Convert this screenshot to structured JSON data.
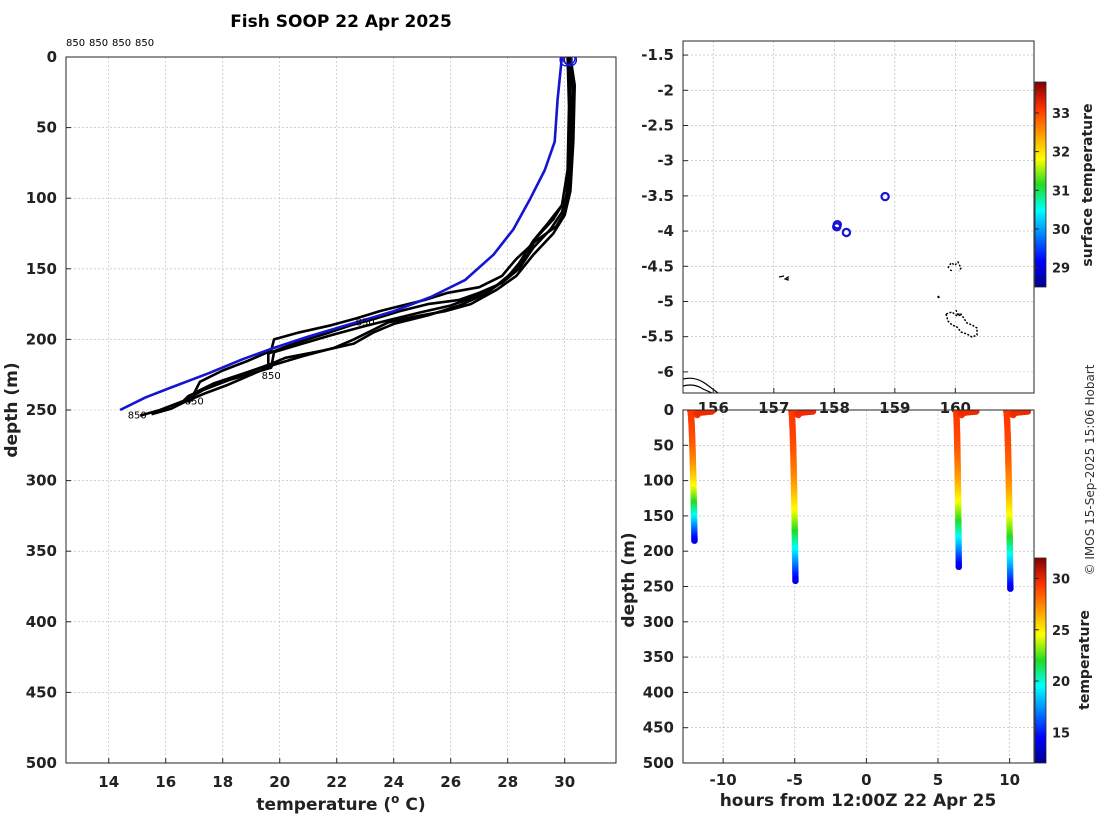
{
  "chart_data": [
    {
      "type": "line",
      "title": "Fish SOOP 22 Apr 2025",
      "xlabel": "temperature (",
      "xlabel_super": "o",
      "xlabel_tail": " C)",
      "ylabel": "depth (m)",
      "xlim": [
        12.5,
        31.8
      ],
      "ylim": [
        500,
        0
      ],
      "xticks": [
        "14",
        "16",
        "18",
        "20",
        "22",
        "24",
        "26",
        "28",
        "30"
      ],
      "yticks": [
        "0",
        "50",
        "100",
        "150",
        "200",
        "250",
        "300",
        "350",
        "400",
        "450",
        "500"
      ],
      "header_labels": [
        "850",
        "850",
        "850",
        "850"
      ],
      "annotations": [
        {
          "text": "850",
          "x": 23.0,
          "y": 188
        },
        {
          "text": "850",
          "x": 19.7,
          "y": 226
        },
        {
          "text": "850",
          "x": 17.0,
          "y": 244
        },
        {
          "text": "850",
          "x": 15.0,
          "y": 254
        }
      ],
      "series": [
        {
          "name": "profile 1",
          "color": "#000000",
          "points": [
            [
              30.1,
              0
            ],
            [
              30.2,
              20
            ],
            [
              30.25,
              60
            ],
            [
              30.15,
              90
            ],
            [
              30.0,
              110
            ],
            [
              29.7,
              120
            ],
            [
              29.0,
              130
            ],
            [
              28.3,
              143
            ],
            [
              27.8,
              155
            ],
            [
              27.0,
              163
            ],
            [
              25.9,
              167
            ],
            [
              25.1,
              172
            ],
            [
              24.3,
              176
            ],
            [
              23.5,
              180
            ],
            [
              22.7,
              185
            ],
            [
              21.8,
              190
            ],
            [
              20.7,
              195
            ],
            [
              19.8,
              200
            ],
            [
              19.7,
              208
            ],
            [
              18.9,
              215
            ],
            [
              18.0,
              222
            ],
            [
              17.2,
              230
            ],
            [
              17.0,
              238
            ],
            [
              16.9,
              244
            ]
          ]
        },
        {
          "name": "profile 2",
          "color": "#000000",
          "points": [
            [
              30.2,
              0
            ],
            [
              30.3,
              25
            ],
            [
              30.2,
              60
            ],
            [
              30.1,
              95
            ],
            [
              29.9,
              110
            ],
            [
              29.5,
              122
            ],
            [
              28.9,
              135
            ],
            [
              28.4,
              150
            ],
            [
              27.8,
              160
            ],
            [
              27.0,
              167
            ],
            [
              26.3,
              172
            ],
            [
              25.2,
              175
            ],
            [
              24.2,
              180
            ],
            [
              23.4,
              185
            ],
            [
              22.5,
              190
            ],
            [
              21.6,
              196
            ],
            [
              20.5,
              203
            ],
            [
              19.6,
              210
            ],
            [
              19.6,
              218
            ],
            [
              18.5,
              226
            ],
            [
              17.6,
              233
            ],
            [
              16.8,
              240
            ],
            [
              16.5,
              246
            ]
          ]
        },
        {
          "name": "profile 3",
          "color": "#000000",
          "points": [
            [
              30.15,
              0
            ],
            [
              30.2,
              30
            ],
            [
              30.2,
              70
            ],
            [
              30.05,
              100
            ],
            [
              29.6,
              115
            ],
            [
              29.0,
              128
            ],
            [
              28.7,
              140
            ],
            [
              28.2,
              152
            ],
            [
              27.6,
              162
            ],
            [
              26.8,
              170
            ],
            [
              26.0,
              176
            ],
            [
              24.9,
              181
            ],
            [
              23.9,
              186
            ],
            [
              22.9,
              191
            ],
            [
              21.8,
              197
            ],
            [
              20.8,
              203
            ],
            [
              19.8,
              209
            ],
            [
              19.7,
              220
            ],
            [
              18.2,
              229
            ],
            [
              17.3,
              236
            ],
            [
              16.7,
              243
            ],
            [
              15.8,
              250
            ],
            [
              15.1,
              254
            ]
          ]
        },
        {
          "name": "profile 4",
          "color": "#000000",
          "points": [
            [
              30.2,
              0
            ],
            [
              30.35,
              20
            ],
            [
              30.3,
              60
            ],
            [
              30.2,
              95
            ],
            [
              30.0,
              112
            ],
            [
              29.6,
              125
            ],
            [
              28.9,
              140
            ],
            [
              28.3,
              155
            ],
            [
              27.6,
              165
            ],
            [
              26.7,
              175
            ],
            [
              25.8,
              180
            ],
            [
              24.7,
              184
            ],
            [
              23.8,
              188
            ],
            [
              23.3,
              193
            ],
            [
              22.6,
              200
            ],
            [
              21.9,
              206
            ],
            [
              20.8,
              212
            ],
            [
              19.8,
              218
            ],
            [
              19.0,
              225
            ],
            [
              18.2,
              232
            ],
            [
              17.4,
              238
            ],
            [
              16.7,
              244
            ],
            [
              16.2,
              249
            ],
            [
              15.5,
              253
            ]
          ]
        },
        {
          "name": "profile 5",
          "color": "#000000",
          "points": [
            [
              30.1,
              0
            ],
            [
              30.15,
              35
            ],
            [
              30.1,
              80
            ],
            [
              29.9,
              105
            ],
            [
              29.4,
              118
            ],
            [
              28.9,
              130
            ],
            [
              28.4,
              146
            ],
            [
              27.9,
              158
            ],
            [
              27.2,
              168
            ],
            [
              26.3,
              176
            ],
            [
              25.2,
              183
            ],
            [
              24.0,
              189
            ],
            [
              23.3,
              195
            ],
            [
              22.6,
              203
            ],
            [
              21.5,
              208
            ],
            [
              20.2,
              213
            ],
            [
              19.5,
              219
            ],
            [
              18.6,
              225
            ],
            [
              17.7,
              231
            ],
            [
              17.0,
              238
            ],
            [
              16.8,
              245
            ]
          ]
        },
        {
          "name": "climatology",
          "color": "#1414d2",
          "points": [
            [
              29.9,
              0
            ],
            [
              29.75,
              30
            ],
            [
              29.65,
              60
            ],
            [
              29.3,
              80
            ],
            [
              28.8,
              100
            ],
            [
              28.2,
              122
            ],
            [
              27.5,
              140
            ],
            [
              26.5,
              158
            ],
            [
              25.3,
              170
            ],
            [
              24.0,
              180
            ],
            [
              22.5,
              189
            ],
            [
              21.0,
              198
            ],
            [
              19.8,
              206
            ],
            [
              18.7,
              214
            ],
            [
              17.5,
              224
            ],
            [
              16.2,
              234
            ],
            [
              15.3,
              241
            ],
            [
              14.4,
              250
            ]
          ]
        }
      ],
      "surface_markers": [
        [
          30.05,
          2
        ],
        [
          30.2,
          2
        ],
        [
          30.15,
          1
        ]
      ]
    },
    {
      "type": "scatter",
      "title": "",
      "xlim": [
        155.5,
        161.3
      ],
      "ylim": [
        -6.3,
        -1.3
      ],
      "xticks": [
        "156",
        "157",
        "158",
        "159",
        "160"
      ],
      "yticks": [
        "-1.5",
        "-2",
        "-2.5",
        "-3",
        "-3.5",
        "-4",
        "-4.5",
        "-5",
        "-5.5",
        "-6"
      ],
      "points": [
        {
          "x": 158.84,
          "y": -3.51
        },
        {
          "x": 158.05,
          "y": -3.91
        },
        {
          "x": 158.04,
          "y": -3.94
        },
        {
          "x": 158.2,
          "y": -4.02
        }
      ],
      "colorbar": {
        "label": "surface temperature",
        "ticks": [
          "29",
          "30",
          "31",
          "32",
          "33"
        ],
        "range": [
          28.5,
          33.8
        ]
      }
    },
    {
      "type": "scatter",
      "xlabel": "hours from 12:00Z 22 Apr 25",
      "ylabel": "depth (m)",
      "xlim": [
        -12.8,
        11.7
      ],
      "ylim": [
        500,
        0
      ],
      "xticks": [
        "-10",
        "-5",
        "0",
        "5",
        "10"
      ],
      "yticks": [
        "0",
        "50",
        "100",
        "150",
        "200",
        "250",
        "300",
        "350",
        "400",
        "450",
        "500"
      ],
      "casts": [
        {
          "t_top": -12.3,
          "t_bottom": -12.0,
          "max_depth": 185
        },
        {
          "t_top": -5.25,
          "t_bottom": -4.95,
          "max_depth": 242
        },
        {
          "t_top": 6.25,
          "t_bottom": 6.45,
          "max_depth": 222
        },
        {
          "t_top": 9.75,
          "t_bottom": 10.05,
          "max_depth": 253
        }
      ],
      "colorbar": {
        "label": "temperature",
        "ticks": [
          "15",
          "20",
          "25",
          "30"
        ],
        "range": [
          12,
          32
        ]
      }
    }
  ],
  "credit": "© IMOS 15-Sep-2025 15:06 Hobart"
}
